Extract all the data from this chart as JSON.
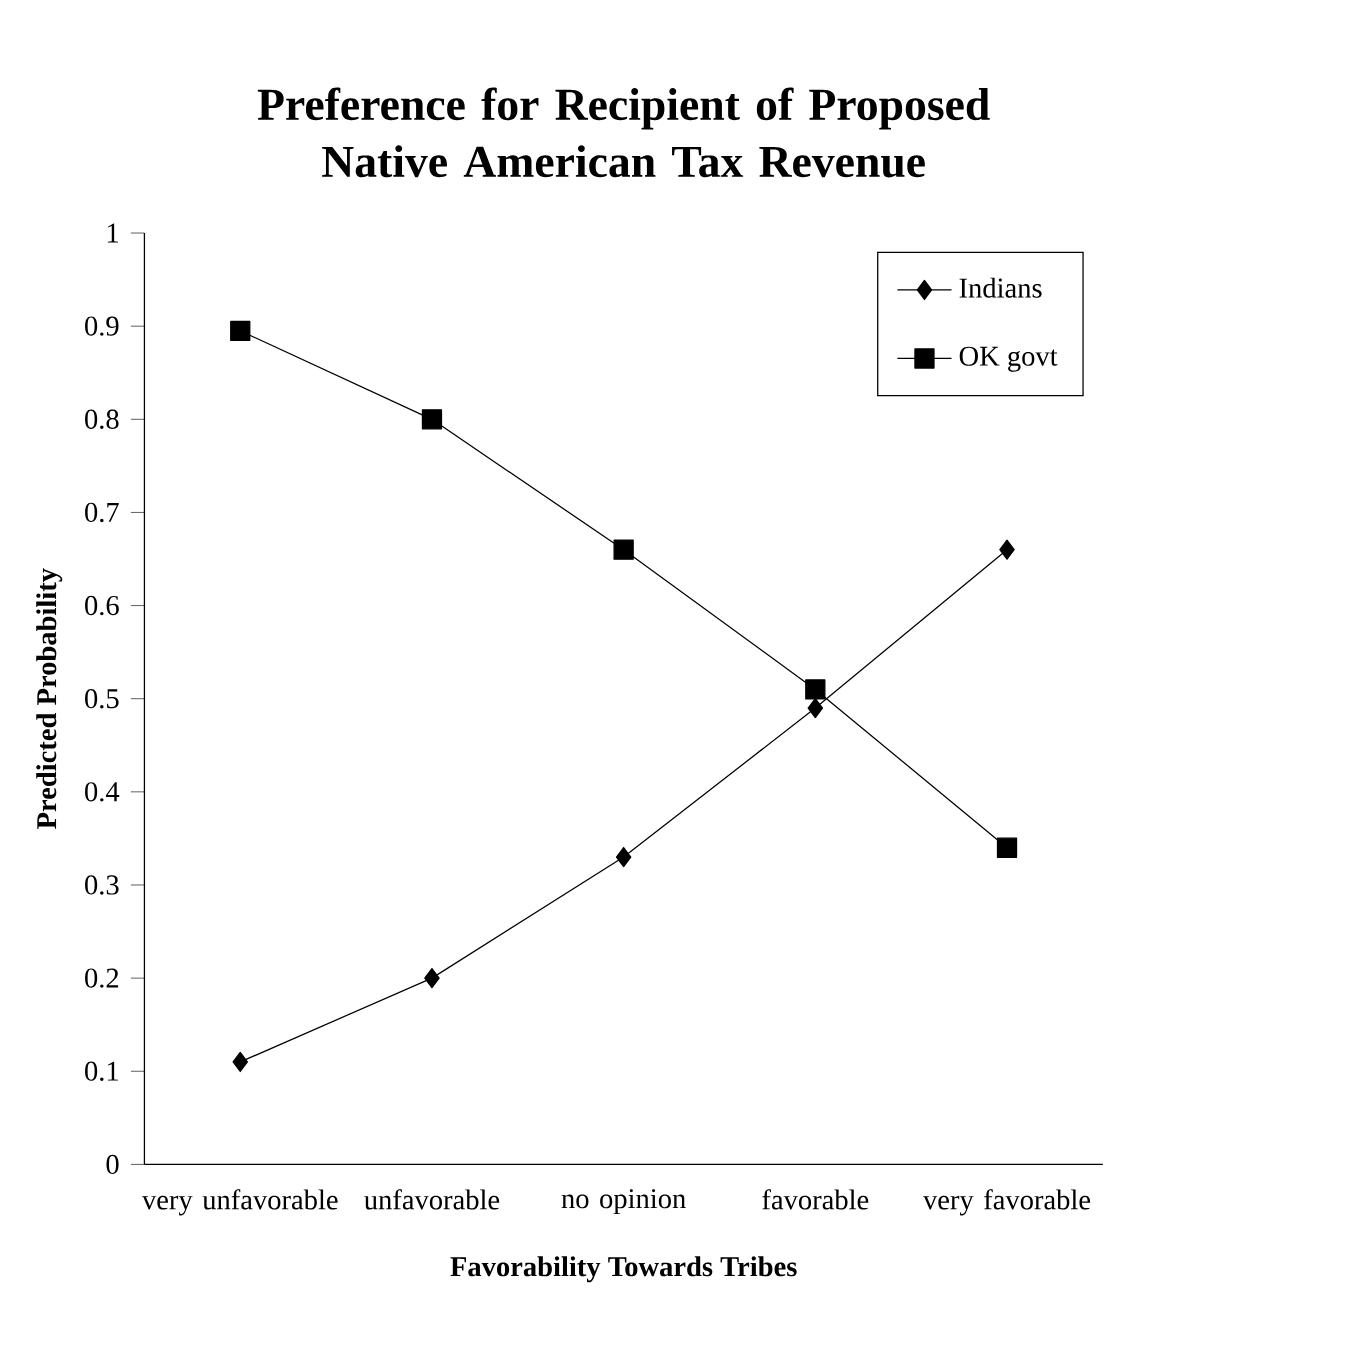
{
  "chart_data": {
    "type": "line",
    "title": "Preference for Recipient of Proposed Native American Tax Revenue",
    "xlabel": "Favorability Towards Tribes",
    "ylabel": "Predicted Probability",
    "categories": [
      "very unfavorable",
      "unfavorable",
      "no opinion",
      "favorable",
      "very favorable"
    ],
    "series": [
      {
        "name": "Indians",
        "color": "#000000",
        "marker": "diamond",
        "values": [
          0.11,
          0.2,
          0.33,
          0.49,
          0.66
        ]
      },
      {
        "name": "OK govt",
        "color": "#000000",
        "marker": "square",
        "values": [
          0.895,
          0.8,
          0.66,
          0.51,
          0.34
        ]
      }
    ],
    "ylim": [
      0,
      1
    ],
    "yticks": [
      0,
      0.1,
      0.2,
      0.3,
      0.4,
      0.5,
      0.6,
      0.7,
      0.8,
      0.9,
      1
    ],
    "grid": false,
    "legend": "top right",
    "line_style": "solid"
  }
}
